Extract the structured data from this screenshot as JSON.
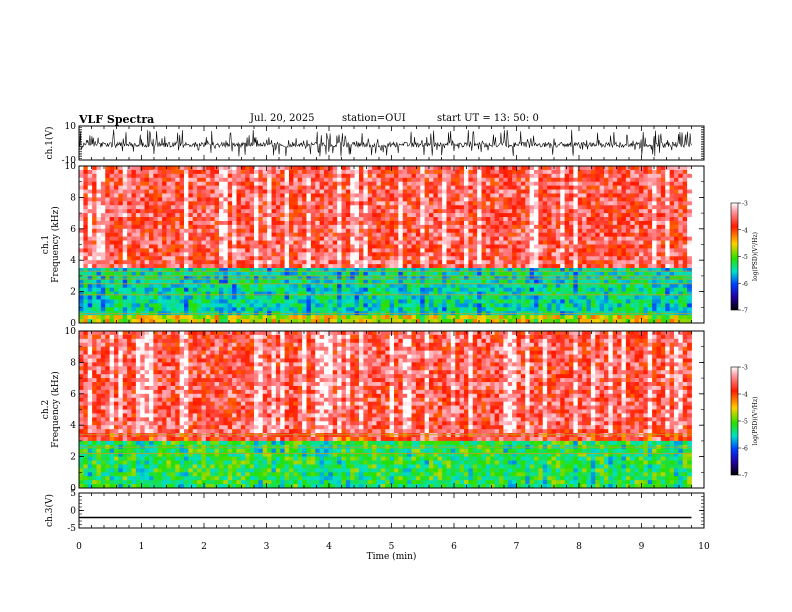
{
  "header": {
    "title": "VLF Spectra",
    "date": "Jul. 20, 2025",
    "station": "station=OUI",
    "start": "start UT = 13: 50: 0"
  },
  "chart_data": [
    {
      "type": "line",
      "panel": "ch1-waveform",
      "ylabel": "ch.1(V)",
      "ylim": [
        -10,
        10
      ],
      "yticks": [
        "10",
        "-10"
      ],
      "xlim": [
        0,
        10
      ],
      "description": "noisy waveform, baseline near 0 V with bursts to about +/-8 V",
      "data_extent_min": 9.8
    },
    {
      "type": "heatmap",
      "panel": "ch1-spectrogram",
      "ylabel": "ch.1\nFrequency (kHz)",
      "ylim": [
        0,
        10
      ],
      "yticks": [
        "0",
        "2",
        "4",
        "6",
        "8",
        "10"
      ],
      "xlim": [
        0,
        10
      ],
      "colorbar": {
        "label": "log(PSD)(V²/Hz)",
        "range": [
          -7,
          -3
        ],
        "ticks": [
          "-3",
          "-4",
          "-5",
          "-6",
          "-7"
        ]
      },
      "features": [
        {
          "band_khz": [
            0,
            0.5
          ],
          "level": -4.5
        },
        {
          "band_khz": [
            0.5,
            3.5
          ],
          "level": -5.3
        },
        {
          "band_khz": [
            3.5,
            10
          ],
          "level": -3.6
        }
      ],
      "lines_khz": [
        0.6,
        1.8,
        2.5,
        2.8,
        3.0,
        3.3
      ]
    },
    {
      "type": "heatmap",
      "panel": "ch2-spectrogram",
      "ylabel": "ch.2\nFrequency (kHz)",
      "ylim": [
        0,
        10
      ],
      "yticks": [
        "0",
        "2",
        "4",
        "6",
        "8",
        "10"
      ],
      "xlim": [
        0,
        10
      ],
      "colorbar": {
        "label": "log(PSD)(V²/Hz)",
        "range": [
          -7,
          -3
        ],
        "ticks": [
          "-3",
          "-4",
          "-5",
          "-6",
          "-7"
        ]
      },
      "features": [
        {
          "band_khz": [
            0,
            3
          ],
          "level": -5.0
        },
        {
          "band_khz": [
            3,
            10
          ],
          "level": -3.6
        }
      ],
      "lines_khz": [
        2.2,
        2.6,
        3.4
      ]
    },
    {
      "type": "line",
      "panel": "ch3-waveform",
      "ylabel": "ch.3(V)",
      "ylim": [
        -5,
        5
      ],
      "yticks": [
        "5",
        "0",
        "-5"
      ],
      "xlim": [
        0,
        10
      ],
      "constant_value": -2.0
    }
  ],
  "xaxis": {
    "label": "Time (min)",
    "ticks": [
      "0",
      "1",
      "2",
      "3",
      "4",
      "5",
      "6",
      "7",
      "8",
      "9",
      "10"
    ]
  }
}
